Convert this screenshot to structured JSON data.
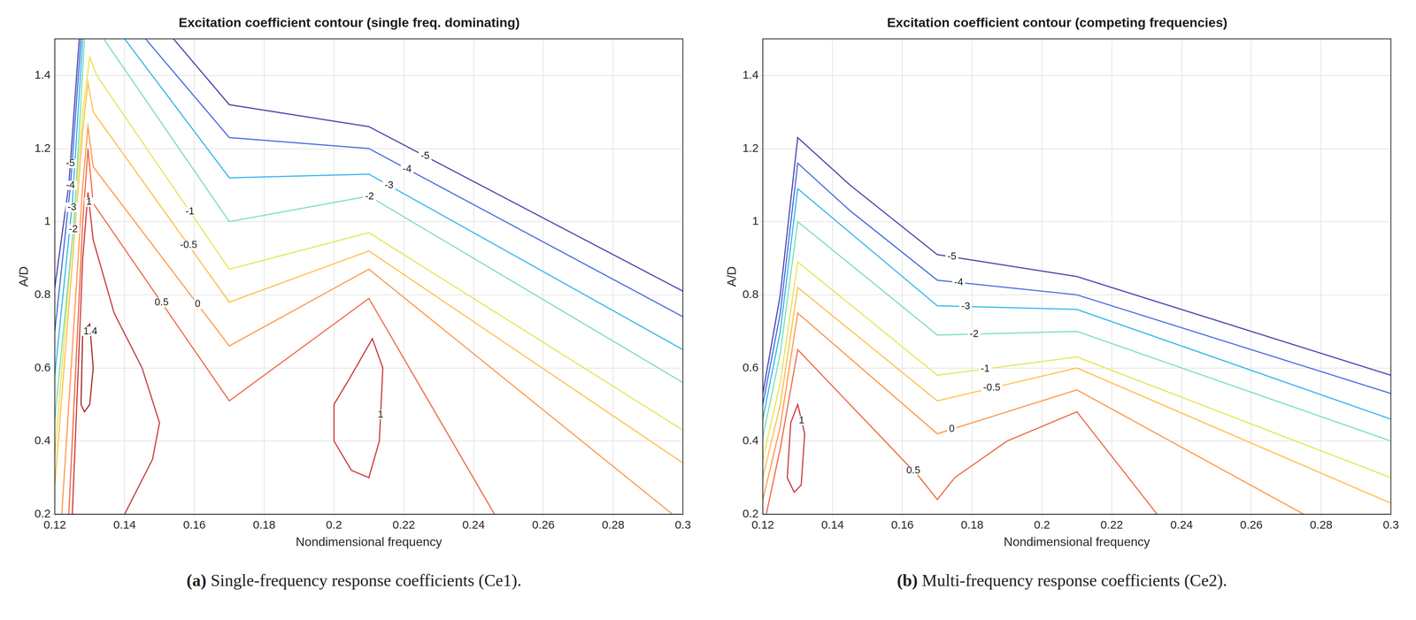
{
  "chart_data": [
    {
      "type": "contour",
      "title": "Excitation coefficient contour (single freq. dominating)",
      "x_label": "Nondimensional frequency",
      "y_label": "A/D",
      "caption": "(a) Single-frequency response coefficients (Ce1).",
      "xlim": [
        0.12,
        0.3
      ],
      "ylim": [
        0.2,
        1.5
      ],
      "xticks": [
        0.12,
        0.14,
        0.16,
        0.18,
        0.2,
        0.22,
        0.24,
        0.26,
        0.28,
        0.3
      ],
      "yticks": [
        0.2,
        0.4,
        0.6,
        0.8,
        1,
        1.2,
        1.4
      ],
      "grid": true,
      "series": [
        {
          "name": "-5",
          "color": "#4b4bb0",
          "x": [
            0.12,
            0.124,
            0.127
          ],
          "values": [
            0.82,
            1.1,
            1.5
          ]
        },
        {
          "name": "-5",
          "color": "#4b4bb0",
          "x": [
            0.154,
            0.17,
            0.21,
            0.3
          ],
          "values": [
            1.5,
            1.32,
            1.26,
            0.81
          ]
        },
        {
          "name": "-4",
          "color": "#4a6fe0",
          "x": [
            0.12,
            0.1245,
            0.1275
          ],
          "values": [
            0.7,
            1.1,
            1.5
          ]
        },
        {
          "name": "-4",
          "color": "#4a6fe0",
          "x": [
            0.146,
            0.17,
            0.21,
            0.3
          ],
          "values": [
            1.5,
            1.23,
            1.2,
            0.74
          ]
        },
        {
          "name": "-3",
          "color": "#38b8ee",
          "x": [
            0.12,
            0.125,
            0.128
          ],
          "values": [
            0.58,
            1.05,
            1.5
          ]
        },
        {
          "name": "-3",
          "color": "#38b8ee",
          "x": [
            0.14,
            0.17,
            0.21,
            0.3
          ],
          "values": [
            1.5,
            1.12,
            1.13,
            0.65
          ]
        },
        {
          "name": "-2",
          "color": "#7ee0b4",
          "x": [
            0.12,
            0.1255,
            0.1285
          ],
          "values": [
            0.46,
            1.0,
            1.5
          ]
        },
        {
          "name": "-2",
          "color": "#7ee0b4",
          "x": [
            0.134,
            0.17,
            0.21,
            0.3
          ],
          "values": [
            1.5,
            1.0,
            1.07,
            0.56
          ]
        },
        {
          "name": "-1",
          "color": "#e6e65a",
          "x": [
            0.12,
            0.128,
            0.13,
            0.132,
            0.17,
            0.21,
            0.3
          ],
          "values": [
            0.36,
            1.3,
            1.45,
            1.4,
            0.87,
            0.97,
            0.43
          ]
        },
        {
          "name": "-0.5",
          "color": "#ffc04c",
          "x": [
            0.12,
            0.128,
            0.1295,
            0.131,
            0.17,
            0.21,
            0.3
          ],
          "values": [
            0.28,
            1.25,
            1.38,
            1.3,
            0.78,
            0.92,
            0.34
          ]
        },
        {
          "name": "0",
          "color": "#ff9a4c",
          "x": [
            0.122,
            0.128,
            0.1295,
            0.131,
            0.17,
            0.21,
            0.297
          ],
          "values": [
            0.2,
            1.1,
            1.26,
            1.15,
            0.66,
            0.87,
            0.2
          ]
        },
        {
          "name": "0.5",
          "color": "#f06a48",
          "x": [
            0.124,
            0.128,
            0.1295,
            0.131,
            0.17,
            0.21,
            0.246
          ],
          "values": [
            0.2,
            1.0,
            1.2,
            1.05,
            0.51,
            0.79,
            0.2
          ]
        },
        {
          "name": "1",
          "color": "#cc3a3a",
          "x": [
            0.125,
            0.128,
            0.1295,
            0.131,
            0.137,
            0.145,
            0.15,
            0.148,
            0.14
          ],
          "values": [
            0.2,
            0.9,
            1.08,
            0.95,
            0.75,
            0.6,
            0.45,
            0.35,
            0.2
          ]
        },
        {
          "name": "1",
          "color": "#cc3a3a",
          "x": [
            0.2,
            0.205,
            0.211,
            0.214,
            0.213,
            0.21,
            0.205,
            0.2,
            0.2
          ],
          "values": [
            0.5,
            0.58,
            0.68,
            0.6,
            0.4,
            0.3,
            0.32,
            0.4,
            0.5
          ]
        },
        {
          "name": "1.4",
          "color": "#a02c2c",
          "x": [
            0.1275,
            0.128,
            0.13,
            0.131,
            0.13,
            0.1285,
            0.1275
          ],
          "values": [
            0.5,
            0.7,
            0.72,
            0.6,
            0.5,
            0.48,
            0.5
          ]
        }
      ]
    },
    {
      "type": "contour",
      "title": "Excitation coefficient contour (competing frequencies)",
      "x_label": "Nondimensional frequency",
      "y_label": "A/D",
      "caption": "(b) Multi-frequency response coefficients (Ce2).",
      "xlim": [
        0.12,
        0.3
      ],
      "ylim": [
        0.2,
        1.5
      ],
      "xticks": [
        0.12,
        0.14,
        0.16,
        0.18,
        0.2,
        0.22,
        0.24,
        0.26,
        0.28,
        0.3
      ],
      "yticks": [
        0.2,
        0.4,
        0.6,
        0.8,
        1,
        1.2,
        1.4
      ],
      "grid": true,
      "series": [
        {
          "name": "-5",
          "color": "#4b4bb0",
          "x": [
            0.12,
            0.125,
            0.13,
            0.145,
            0.17,
            0.21,
            0.3
          ],
          "values": [
            0.53,
            0.8,
            1.23,
            1.1,
            0.91,
            0.85,
            0.58
          ]
        },
        {
          "name": "-4",
          "color": "#4a6fe0",
          "x": [
            0.12,
            0.125,
            0.13,
            0.145,
            0.17,
            0.21,
            0.3
          ],
          "values": [
            0.5,
            0.75,
            1.16,
            1.03,
            0.84,
            0.8,
            0.53
          ]
        },
        {
          "name": "-3",
          "color": "#38b8ee",
          "x": [
            0.12,
            0.125,
            0.13,
            0.17,
            0.21,
            0.3
          ],
          "values": [
            0.46,
            0.7,
            1.09,
            0.77,
            0.76,
            0.46
          ]
        },
        {
          "name": "-2",
          "color": "#7ee0b4",
          "x": [
            0.12,
            0.125,
            0.13,
            0.17,
            0.21,
            0.3
          ],
          "values": [
            0.41,
            0.64,
            1.0,
            0.69,
            0.7,
            0.4
          ]
        },
        {
          "name": "-1",
          "color": "#e6e65a",
          "x": [
            0.12,
            0.125,
            0.13,
            0.17,
            0.21,
            0.3
          ],
          "values": [
            0.35,
            0.56,
            0.89,
            0.58,
            0.63,
            0.3
          ]
        },
        {
          "name": "-0.5",
          "color": "#ffc04c",
          "x": [
            0.12,
            0.125,
            0.13,
            0.17,
            0.21,
            0.3
          ],
          "values": [
            0.3,
            0.5,
            0.82,
            0.51,
            0.6,
            0.23
          ]
        },
        {
          "name": "0",
          "color": "#ff9a4c",
          "x": [
            0.12,
            0.125,
            0.13,
            0.17,
            0.21,
            0.275
          ],
          "values": [
            0.24,
            0.44,
            0.75,
            0.42,
            0.54,
            0.2
          ]
        },
        {
          "name": "0.5",
          "color": "#f06a48",
          "x": [
            0.121,
            0.125,
            0.13,
            0.165,
            0.17,
            0.175,
            0.19,
            0.21,
            0.233
          ],
          "values": [
            0.2,
            0.38,
            0.65,
            0.3,
            0.24,
            0.3,
            0.4,
            0.48,
            0.2
          ]
        },
        {
          "name": "1",
          "color": "#cc3a3a",
          "x": [
            0.127,
            0.128,
            0.13,
            0.132,
            0.131,
            0.129,
            0.127
          ],
          "values": [
            0.3,
            0.45,
            0.5,
            0.42,
            0.28,
            0.26,
            0.3
          ]
        }
      ]
    }
  ]
}
